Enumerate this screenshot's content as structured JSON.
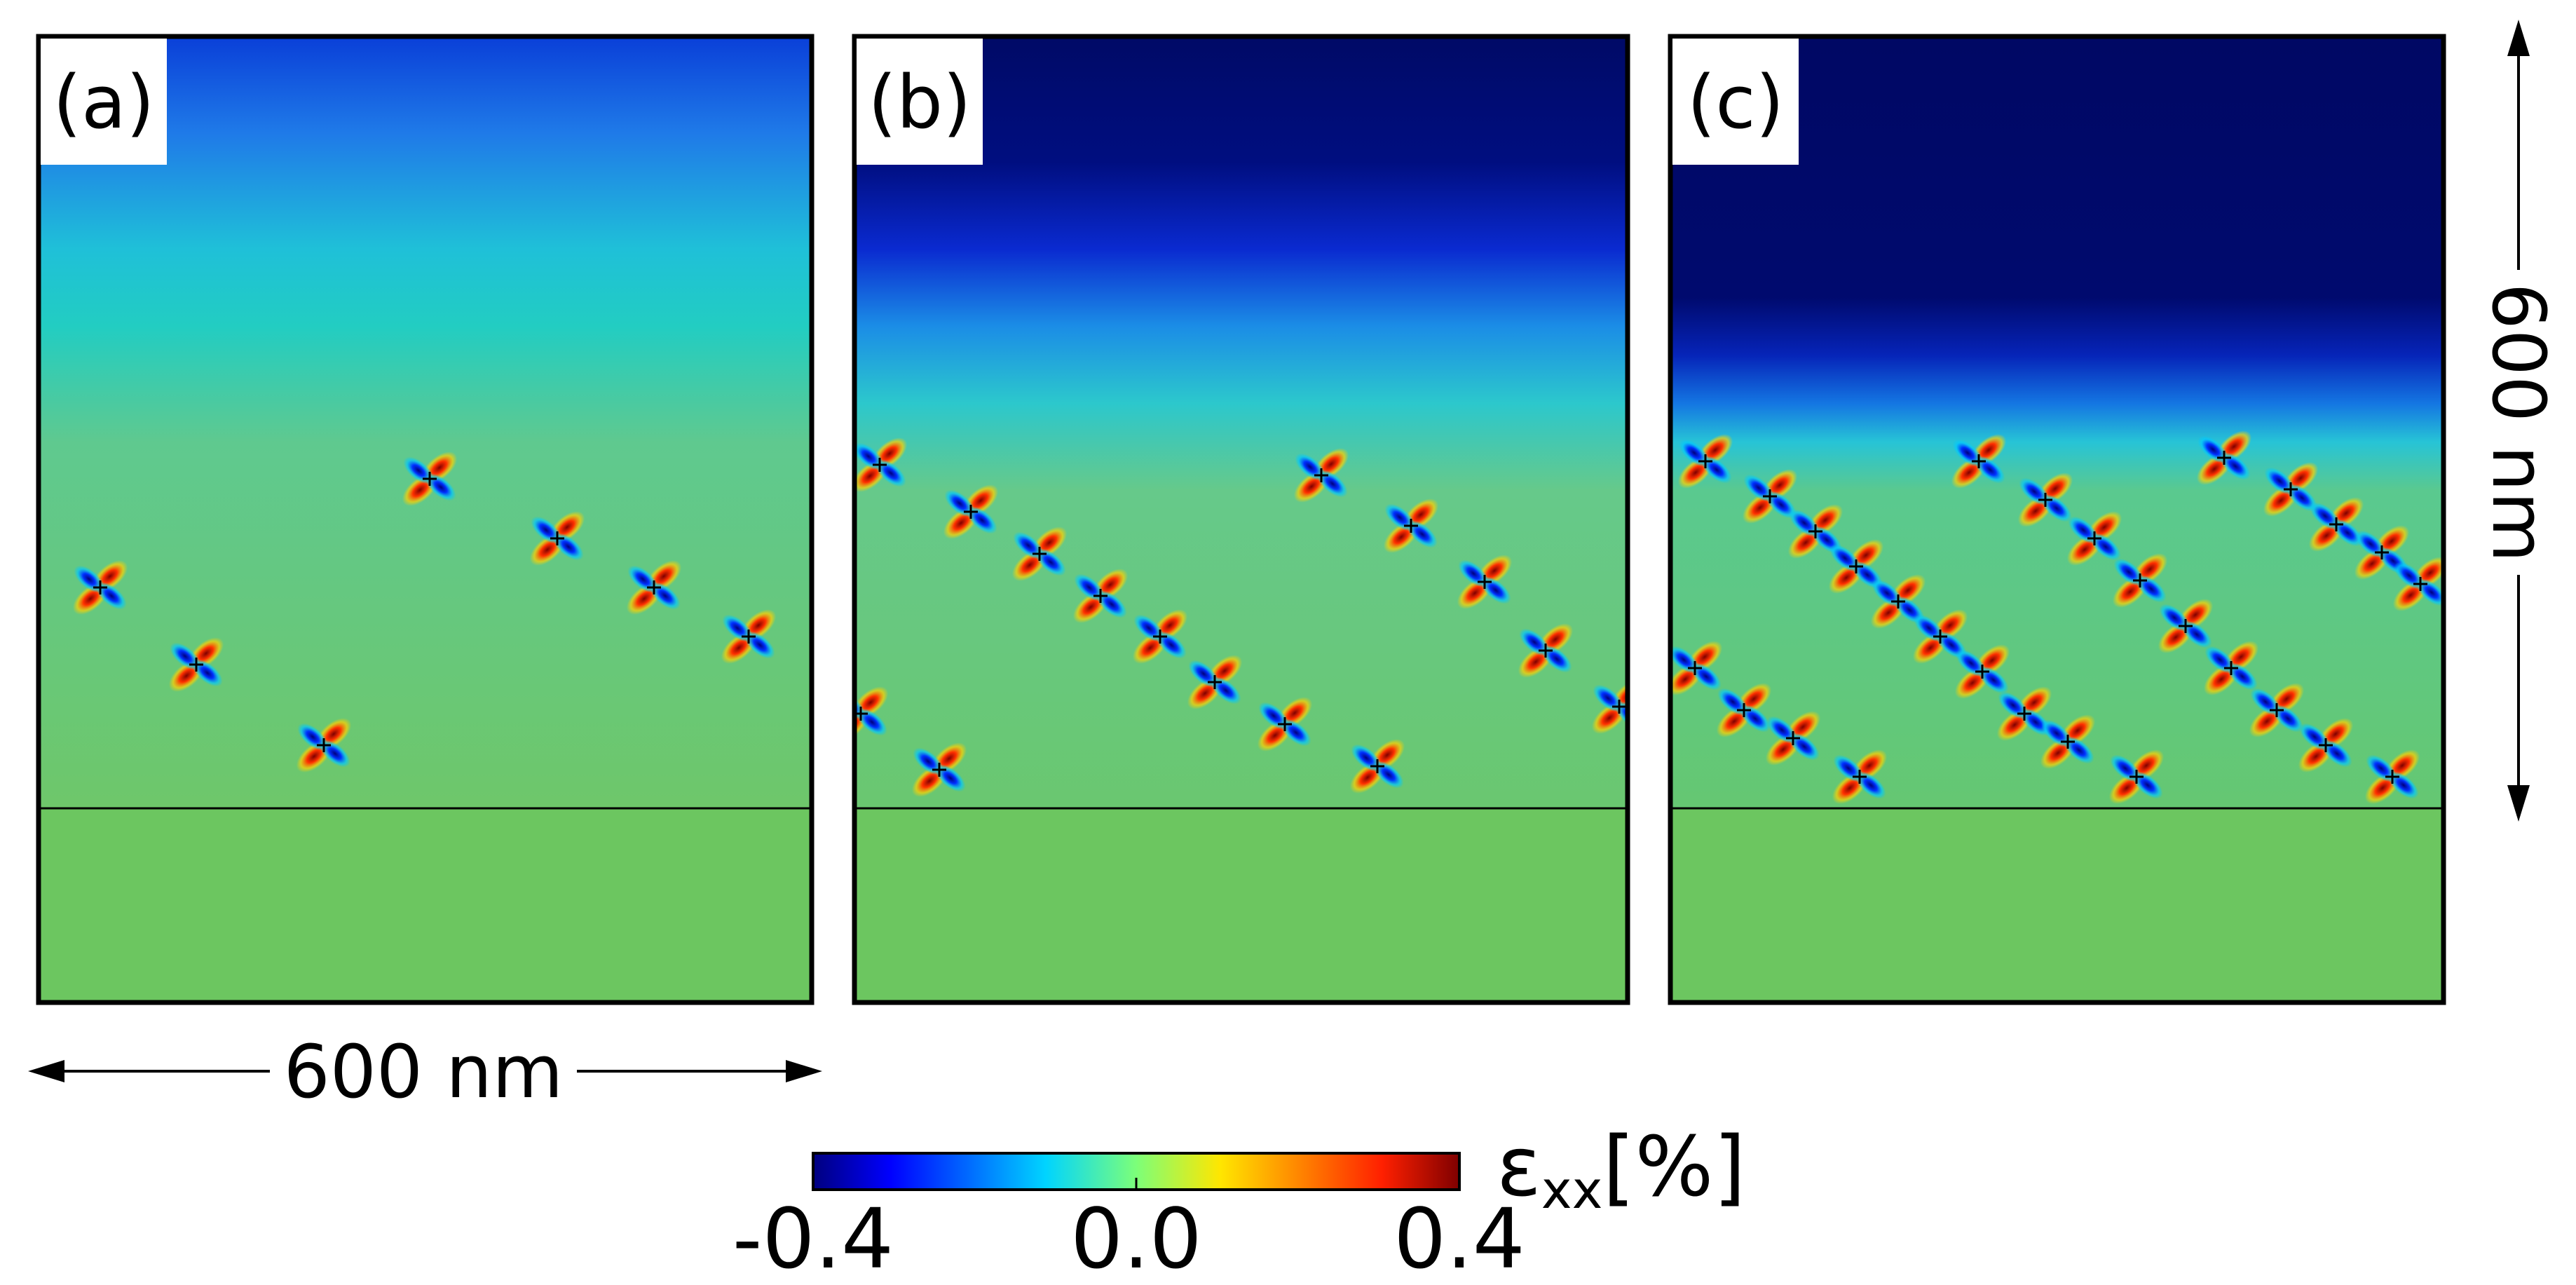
{
  "panels": [
    {
      "label": "(a)",
      "blue_band": "moderate",
      "dislocation_rows": 1
    },
    {
      "label": "(b)",
      "blue_band": "strong",
      "dislocation_rows": 2
    },
    {
      "label": "(c)",
      "blue_band": "very strong",
      "dislocation_rows": 3
    }
  ],
  "scale_bars": {
    "horizontal": "600 nm",
    "vertical": "600 nm"
  },
  "colorbar": {
    "title_symbol": "ε",
    "title_subscript": "xx",
    "title_unit": "[%]",
    "tick_labels": [
      "-0.4",
      "0.0",
      "0.4"
    ],
    "min": -0.4,
    "max": 0.4,
    "colors": [
      "#00007f",
      "#0000ff",
      "#00d4ff",
      "#7cff79",
      "#ffe600",
      "#ff2000",
      "#7f0000"
    ]
  }
}
